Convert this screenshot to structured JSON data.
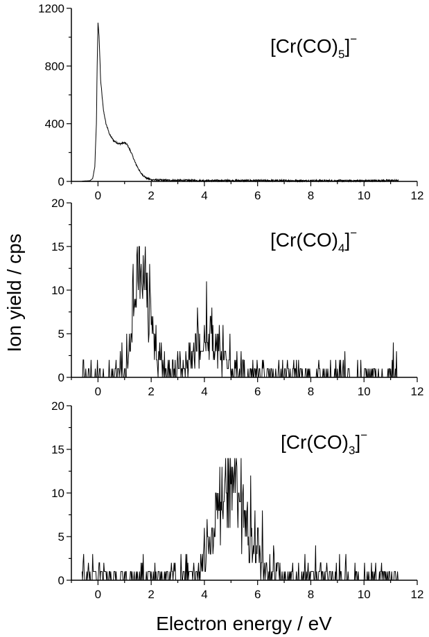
{
  "figure": {
    "ylabel": "Ion yield / cps",
    "xlabel": "Electron energy / eV"
  },
  "chart_data": [
    {
      "type": "line",
      "panel": "top",
      "species": {
        "base": "[Cr(CO)",
        "sub": "5",
        "close": "]",
        "sup": "−"
      },
      "xlim": [
        -1,
        12
      ],
      "ylim": [
        0,
        1200
      ],
      "xticks": [
        0,
        2,
        4,
        6,
        8,
        10,
        12
      ],
      "yticks": [
        0,
        400,
        800,
        1200
      ],
      "grid": false,
      "curve": {
        "kind": "smooth",
        "points": [
          [
            -0.6,
            2
          ],
          [
            -0.3,
            5
          ],
          [
            -0.2,
            20
          ],
          [
            -0.12,
            100
          ],
          [
            -0.06,
            400
          ],
          [
            -0.03,
            800
          ],
          [
            0.0,
            1100
          ],
          [
            0.04,
            1010
          ],
          [
            0.1,
            700
          ],
          [
            0.2,
            500
          ],
          [
            0.3,
            400
          ],
          [
            0.45,
            320
          ],
          [
            0.6,
            280
          ],
          [
            0.8,
            260
          ],
          [
            1.0,
            268
          ],
          [
            1.1,
            255
          ],
          [
            1.25,
            200
          ],
          [
            1.4,
            130
          ],
          [
            1.6,
            60
          ],
          [
            1.8,
            25
          ],
          [
            2.0,
            12
          ],
          [
            2.5,
            8
          ],
          [
            4.0,
            6
          ],
          [
            6.0,
            6
          ],
          [
            8.0,
            5
          ],
          [
            10.0,
            5
          ],
          [
            11.3,
            7
          ]
        ],
        "noise": 6
      }
    },
    {
      "type": "line",
      "panel": "middle",
      "species": {
        "base": "[Cr(CO)",
        "sub": "4",
        "close": "]",
        "sup": "−"
      },
      "xlim": [
        -1,
        12
      ],
      "ylim": [
        0,
        20
      ],
      "xticks": [
        0,
        2,
        4,
        6,
        8,
        10,
        12
      ],
      "yticks": [
        0,
        5,
        10,
        15,
        20
      ],
      "grid": false,
      "curve": {
        "kind": "counts",
        "range": [
          -0.6,
          11.3
        ],
        "peaks": [
          {
            "center": 1.65,
            "height": 13,
            "width": 0.32
          },
          {
            "center": 4.1,
            "height": 4.2,
            "width": 0.55
          }
        ],
        "background": 0.35,
        "max": 15
      }
    },
    {
      "type": "line",
      "panel": "bottom",
      "species": {
        "base": "[Cr(CO)",
        "sub": "3",
        "close": "]",
        "sup": "−"
      },
      "xlim": [
        -1,
        12
      ],
      "ylim": [
        0,
        20
      ],
      "xticks": [
        0,
        2,
        4,
        6,
        8,
        10,
        12
      ],
      "yticks": [
        0,
        5,
        10,
        15,
        20
      ],
      "grid": false,
      "curve": {
        "kind": "counts",
        "range": [
          -0.6,
          11.3
        ],
        "peaks": [
          {
            "center": 5.05,
            "height": 10.5,
            "width": 0.6
          }
        ],
        "background": 0.55,
        "max": 14
      }
    }
  ]
}
